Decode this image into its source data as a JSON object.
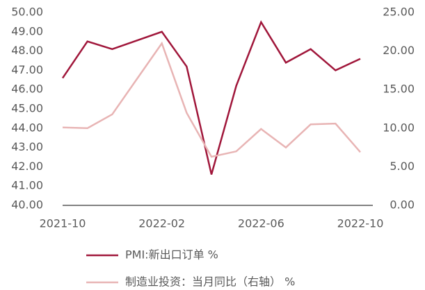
{
  "chart_data": {
    "type": "line",
    "categories": [
      "2021-10",
      null,
      null,
      null,
      "2022-02",
      null,
      null,
      null,
      "2022-06",
      null,
      null,
      null,
      "2022-10"
    ],
    "series": [
      {
        "name": "PMI:新出口订单 %",
        "color": "#a0163a",
        "values": [
          46.6,
          48.5,
          48.1,
          48.55,
          49.0,
          47.2,
          41.6,
          46.2,
          49.5,
          47.4,
          48.1,
          47.0,
          47.6
        ]
      },
      {
        "name": "制造业投资：当月同比（右轴） %",
        "color": "#e8b4b4",
        "axis": "y2",
        "values": [
          10.1,
          10.0,
          11.8,
          16.4,
          21.0,
          12.0,
          6.3,
          7.0,
          9.9,
          7.5,
          10.5,
          10.6,
          6.9
        ]
      }
    ],
    "ylim": [
      40,
      50
    ],
    "yticks": [
      {
        "value": 40,
        "label": "40.00"
      },
      {
        "value": 41,
        "label": "41.00"
      },
      {
        "value": 42,
        "label": "42.00"
      },
      {
        "value": 43,
        "label": "43.00"
      },
      {
        "value": 44,
        "label": "44.00"
      },
      {
        "value": 45,
        "label": "45.00"
      },
      {
        "value": 46,
        "label": "46.00"
      },
      {
        "value": 47,
        "label": "47.00"
      },
      {
        "value": 48,
        "label": "48.00"
      },
      {
        "value": 49,
        "label": "49.00"
      },
      {
        "value": 50,
        "label": "50.00"
      }
    ],
    "y2lim": [
      0,
      25
    ],
    "y2ticks": [
      {
        "value": 0,
        "label": "0.00"
      },
      {
        "value": 5,
        "label": "5.00"
      },
      {
        "value": 10,
        "label": "10.00"
      },
      {
        "value": 15,
        "label": "15.00"
      },
      {
        "value": 20,
        "label": "20.00"
      },
      {
        "value": 25,
        "label": "25.00"
      }
    ],
    "legend": "bottom"
  }
}
